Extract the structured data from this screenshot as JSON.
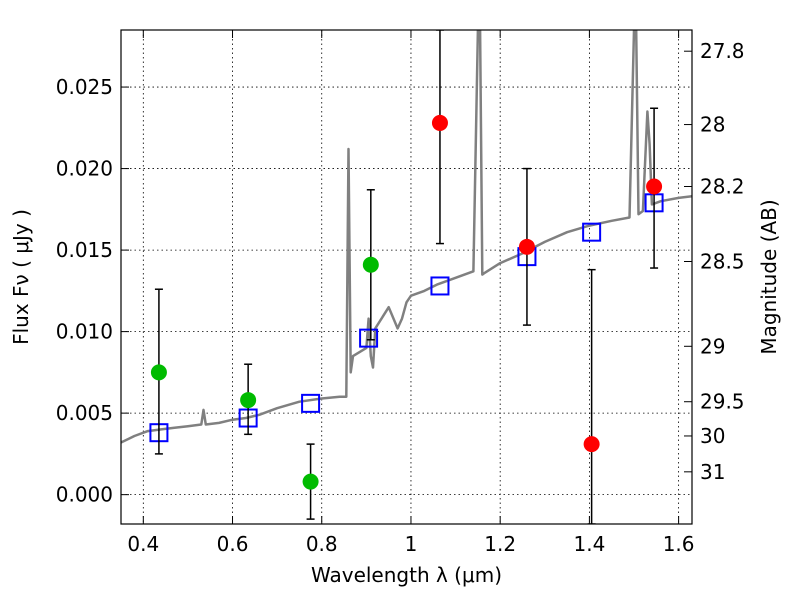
{
  "chart_data": {
    "type": "scatter",
    "title": "",
    "xlabel": "Wavelength  λ (μm)",
    "ylabel": "Flux  Fν  ( μJy )",
    "y2label": "Magnitude (AB)",
    "xlim": [
      0.35,
      1.63
    ],
    "ylim": [
      -0.0018,
      0.0285
    ],
    "grid": true,
    "x_ticks": [
      0.4,
      0.6,
      0.8,
      1.0,
      1.2,
      1.4,
      1.6
    ],
    "x_tick_labels": [
      "0.4",
      "0.6",
      "0.8",
      "1",
      "1.2",
      "1.4",
      "1.6"
    ],
    "y_ticks": [
      0.0,
      0.005,
      0.01,
      0.015,
      0.02,
      0.025
    ],
    "y_tick_labels": [
      "0.000",
      "0.005",
      "0.010",
      "0.015",
      "0.020",
      "0.025"
    ],
    "y2_ticks": [
      {
        "label": "27.8",
        "flux": 0.0272
      },
      {
        "label": "28",
        "flux": 0.0227
      },
      {
        "label": "28.2",
        "flux": 0.0189
      },
      {
        "label": "28.5",
        "flux": 0.0143
      },
      {
        "label": "29",
        "flux": 0.0091
      },
      {
        "label": "29.5",
        "flux": 0.0057
      },
      {
        "label": "30",
        "flux": 0.0036
      },
      {
        "label": "31",
        "flux": 0.0014
      }
    ],
    "series": [
      {
        "kind": "line",
        "color": "#808080",
        "x": [
          0.35,
          0.38,
          0.41,
          0.44,
          0.47,
          0.5,
          0.53,
          0.535,
          0.54,
          0.57,
          0.6,
          0.63,
          0.66,
          0.7,
          0.75,
          0.8,
          0.84,
          0.855,
          0.86,
          0.865,
          0.87,
          0.9,
          0.905,
          0.91,
          0.915,
          0.92,
          0.95,
          0.97,
          0.98,
          0.99,
          1.0,
          1.03,
          1.06,
          1.1,
          1.14,
          1.15,
          1.155,
          1.16,
          1.165,
          1.2,
          1.25,
          1.3,
          1.35,
          1.4,
          1.45,
          1.49,
          1.5,
          1.505,
          1.51,
          1.52,
          1.53,
          1.535,
          1.54,
          1.56,
          1.6,
          1.63
        ],
        "y": [
          0.0032,
          0.0036,
          0.0039,
          0.004,
          0.0041,
          0.0042,
          0.0043,
          0.0052,
          0.0043,
          0.0044,
          0.0046,
          0.0047,
          0.0049,
          0.0053,
          0.0057,
          0.0059,
          0.006,
          0.006,
          0.0212,
          0.0075,
          0.0085,
          0.009,
          0.0108,
          0.0085,
          0.0078,
          0.0102,
          0.0115,
          0.0102,
          0.0108,
          0.0118,
          0.0122,
          0.0125,
          0.0129,
          0.0133,
          0.0137,
          0.0285,
          0.0285,
          0.0135,
          0.0136,
          0.0142,
          0.0148,
          0.0155,
          0.0161,
          0.0165,
          0.0168,
          0.017,
          0.0285,
          0.0285,
          0.0172,
          0.0174,
          0.0235,
          0.0215,
          0.0178,
          0.018,
          0.0182,
          0.0183
        ]
      },
      {
        "kind": "square",
        "color": "#0000ff",
        "x": [
          0.435,
          0.635,
          0.775,
          0.905,
          1.065,
          1.26,
          1.405,
          1.545
        ],
        "y": [
          0.0038,
          0.0047,
          0.0056,
          0.0096,
          0.0128,
          0.0146,
          0.0161,
          0.0179
        ]
      },
      {
        "kind": "point",
        "color": "#00bb00",
        "x": [
          0.435,
          0.635,
          0.775,
          0.91
        ],
        "y": [
          0.0075,
          0.0058,
          0.0008,
          0.0141
        ],
        "yerr_low": [
          0.0025,
          0.0037,
          -0.0015,
          0.0095
        ],
        "yerr_high": [
          0.0126,
          0.008,
          0.0031,
          0.0187
        ]
      },
      {
        "kind": "point",
        "color": "#ff0000",
        "x": [
          1.065,
          1.26,
          1.405,
          1.545
        ],
        "y": [
          0.0228,
          0.0152,
          0.0031,
          0.0189
        ],
        "yerr_low": [
          0.0154,
          0.0104,
          -0.0018,
          0.0139
        ],
        "yerr_high": [
          0.0285,
          0.02,
          0.0138,
          0.0237
        ]
      }
    ]
  }
}
